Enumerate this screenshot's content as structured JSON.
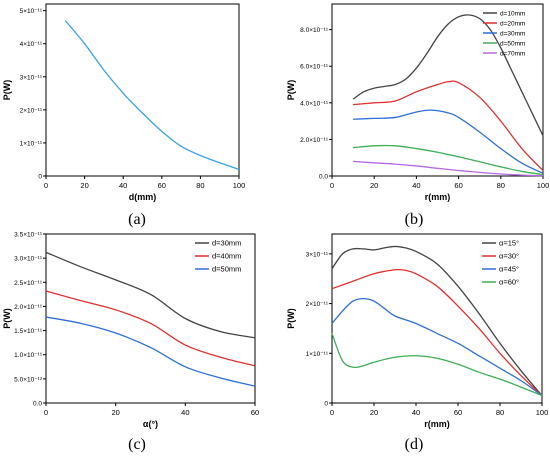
{
  "captions": [
    "(a)",
    "(b)",
    "(c)",
    "(d)"
  ],
  "chart_data": [
    {
      "type": "line",
      "panel": "(a)",
      "xlabel": "d(mm)",
      "ylabel": "P(W)",
      "xlim": [
        0,
        100
      ],
      "ylim": [
        0,
        5.2e-11
      ],
      "xticks": [
        "0",
        "20",
        "40",
        "60",
        "80",
        "100"
      ],
      "yticks": [
        {
          "value": 0,
          "label": "0"
        },
        {
          "value": 1e-11,
          "label": "1×10⁻¹¹"
        },
        {
          "value": 2e-11,
          "label": "2×10⁻¹¹"
        },
        {
          "value": 3e-11,
          "label": "3×10⁻¹¹"
        },
        {
          "value": 4e-11,
          "label": "4×10⁻¹¹"
        },
        {
          "value": 5e-11,
          "label": "5×10⁻¹¹"
        }
      ],
      "legend": "none",
      "series": [
        {
          "color": "#3aa3e3",
          "x": [
            10,
            20,
            30,
            40,
            50,
            60,
            70,
            80,
            90,
            100
          ],
          "values": [
            4.7e-11,
            4e-11,
            3.2e-11,
            2.5e-11,
            1.9e-11,
            1.35e-11,
            9e-12,
            6.2e-12,
            4e-12,
            2e-12
          ]
        }
      ]
    },
    {
      "type": "line",
      "panel": "(b)",
      "xlabel": "r(mm)",
      "ylabel": "P(W)",
      "xlim": [
        0,
        100
      ],
      "ylim": [
        0,
        9.4e-11
      ],
      "xticks": [
        "0",
        "20",
        "40",
        "60",
        "80",
        "100"
      ],
      "yticks": [
        {
          "value": 0,
          "label": "0.0"
        },
        {
          "value": 2e-11,
          "label": "2.0×10⁻¹¹"
        },
        {
          "value": 4e-11,
          "label": "4.0×10⁻¹¹"
        },
        {
          "value": 6e-11,
          "label": "6.0×10⁻¹¹"
        },
        {
          "value": 8e-11,
          "label": "8.0×10⁻¹¹"
        }
      ],
      "legend": "top-right",
      "series": [
        {
          "name": "d=10mm",
          "color": "#444444",
          "x": [
            10,
            15,
            20,
            25,
            30,
            35,
            40,
            45,
            50,
            55,
            60,
            65,
            70,
            75,
            80,
            85,
            90,
            95,
            100
          ],
          "values": [
            4.2e-11,
            4.6e-11,
            4.8e-11,
            4.9e-11,
            5e-11,
            5.3e-11,
            5.9e-11,
            6.7e-11,
            7.6e-11,
            8.3e-11,
            8.7e-11,
            8.8e-11,
            8.6e-11,
            8e-11,
            7e-11,
            5.8e-11,
            4.6e-11,
            3.4e-11,
            2.2e-11
          ]
        },
        {
          "name": "d=20mm",
          "color": "#e03030",
          "x": [
            10,
            20,
            30,
            40,
            50,
            55,
            60,
            70,
            80,
            90,
            100
          ],
          "values": [
            3.9e-11,
            4e-11,
            4.1e-11,
            4.6e-11,
            5e-11,
            5.15e-11,
            5.1e-11,
            4.3e-11,
            3e-11,
            1.5e-11,
            3e-12
          ]
        },
        {
          "name": "d=30mm",
          "color": "#2f6fd6",
          "x": [
            10,
            20,
            30,
            40,
            47,
            55,
            60,
            70,
            80,
            90,
            100
          ],
          "values": [
            3.1e-11,
            3.15e-11,
            3.2e-11,
            3.5e-11,
            3.6e-11,
            3.45e-11,
            3.2e-11,
            2.4e-11,
            1.5e-11,
            7e-12,
            1.5e-12
          ]
        },
        {
          "name": "d=50mm",
          "color": "#3fae55",
          "x": [
            10,
            20,
            30,
            40,
            50,
            60,
            70,
            80,
            90,
            100
          ],
          "values": [
            1.55e-11,
            1.65e-11,
            1.65e-11,
            1.5e-11,
            1.3e-11,
            1.05e-11,
            7.8e-12,
            5e-12,
            2.5e-12,
            8e-13
          ]
        },
        {
          "name": "d=70mm",
          "color": "#b56ae0",
          "x": [
            10,
            20,
            30,
            40,
            50,
            60,
            70,
            80,
            90,
            100
          ],
          "values": [
            8e-12,
            7.2e-12,
            6.5e-12,
            5.5e-12,
            4.2e-12,
            3e-12,
            2e-12,
            1.1e-12,
            5e-13,
            2e-13
          ]
        }
      ]
    },
    {
      "type": "line",
      "panel": "(c)",
      "xlabel": "α(°)",
      "ylabel": "P(W)",
      "xlim": [
        0,
        60
      ],
      "ylim": [
        0,
        3.5e-11
      ],
      "xticks": [
        "0",
        "20",
        "40",
        "60"
      ],
      "yticks": [
        {
          "value": 0,
          "label": "0.0"
        },
        {
          "value": 5e-12,
          "label": "5.0×10⁻¹²"
        },
        {
          "value": 1e-11,
          "label": "1.0×10⁻¹¹"
        },
        {
          "value": 1.5e-11,
          "label": "1.5×10⁻¹¹"
        },
        {
          "value": 2e-11,
          "label": "2.0×10⁻¹¹"
        },
        {
          "value": 2.5e-11,
          "label": "2.5×10⁻¹¹"
        },
        {
          "value": 3e-11,
          "label": "3.0×10⁻¹¹"
        },
        {
          "value": 3.5e-11,
          "label": "3.5×10⁻¹¹"
        }
      ],
      "legend": "top-right",
      "series": [
        {
          "name": "d=30mm",
          "color": "#444444",
          "x": [
            0,
            10,
            20,
            30,
            40,
            50,
            60
          ],
          "values": [
            3.12e-11,
            2.82e-11,
            2.55e-11,
            2.25e-11,
            1.75e-11,
            1.48e-11,
            1.35e-11
          ]
        },
        {
          "name": "d=40mm",
          "color": "#e03030",
          "x": [
            0,
            10,
            20,
            30,
            40,
            50,
            60
          ],
          "values": [
            2.32e-11,
            2.12e-11,
            1.93e-11,
            1.65e-11,
            1.2e-11,
            9.5e-12,
            7.7e-12
          ]
        },
        {
          "name": "d=50mm",
          "color": "#2f6fd6",
          "x": [
            0,
            10,
            20,
            30,
            40,
            50,
            60
          ],
          "values": [
            1.78e-11,
            1.65e-11,
            1.45e-11,
            1.15e-11,
            7.5e-12,
            5.2e-12,
            3.5e-12
          ]
        }
      ]
    },
    {
      "type": "line",
      "panel": "(d)",
      "xlabel": "r(mm)",
      "ylabel": "P(W)",
      "xlim": [
        0,
        100
      ],
      "ylim": [
        0,
        3.4e-11
      ],
      "xticks": [
        "0",
        "20",
        "40",
        "60",
        "80",
        "100"
      ],
      "yticks": [
        {
          "value": 0,
          "label": "0"
        },
        {
          "value": 1e-11,
          "label": "1×10⁻¹¹"
        },
        {
          "value": 2e-11,
          "label": "2×10⁻¹¹"
        },
        {
          "value": 3e-11,
          "label": "3×10⁻¹¹"
        }
      ],
      "legend": "top-right",
      "series": [
        {
          "name": "α=15°",
          "color": "#444444",
          "x": [
            0,
            5,
            10,
            15,
            20,
            25,
            30,
            35,
            40,
            50,
            60,
            70,
            80,
            90,
            100
          ],
          "values": [
            2.7e-11,
            3e-11,
            3.1e-11,
            3.1e-11,
            3.08e-11,
            3.12e-11,
            3.15e-11,
            3.12e-11,
            3.05e-11,
            2.8e-11,
            2.35e-11,
            1.8e-11,
            1.2e-11,
            6.5e-12,
            1.5e-12
          ]
        },
        {
          "name": "α=30°",
          "color": "#e03030",
          "x": [
            0,
            10,
            20,
            30,
            35,
            40,
            50,
            60,
            70,
            80,
            90,
            100
          ],
          "values": [
            2.3e-11,
            2.45e-11,
            2.6e-11,
            2.68e-11,
            2.67e-11,
            2.6e-11,
            2.35e-11,
            1.95e-11,
            1.5e-11,
            1e-11,
            5.5e-12,
            1.5e-12
          ]
        },
        {
          "name": "α=45°",
          "color": "#2f6fd6",
          "x": [
            0,
            5,
            10,
            15,
            20,
            25,
            30,
            40,
            50,
            60,
            70,
            80,
            90,
            100
          ],
          "values": [
            1.6e-11,
            1.85e-11,
            2.05e-11,
            2.1e-11,
            2.05e-11,
            1.9e-11,
            1.75e-11,
            1.6e-11,
            1.4e-11,
            1.2e-11,
            9.5e-12,
            7e-12,
            4.5e-12,
            1.5e-12
          ]
        },
        {
          "name": "α=60°",
          "color": "#3fae55",
          "x": [
            0,
            5,
            10,
            15,
            20,
            30,
            40,
            50,
            60,
            70,
            80,
            90,
            100
          ],
          "values": [
            1.4e-11,
            8.5e-12,
            7.2e-12,
            7.5e-12,
            8.2e-12,
            9.2e-12,
            9.5e-12,
            9e-12,
            7.8e-12,
            6.2e-12,
            4.8e-12,
            3.2e-12,
            1.5e-12
          ]
        }
      ]
    }
  ]
}
